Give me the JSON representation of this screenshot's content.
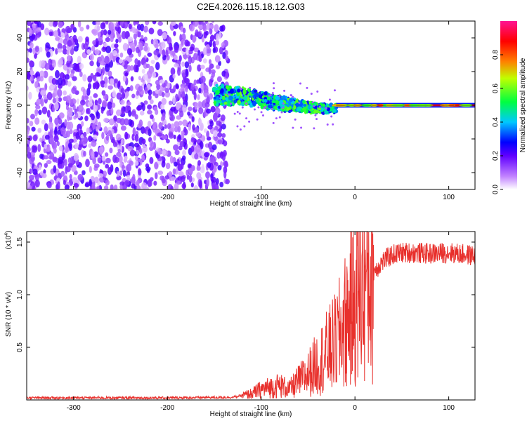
{
  "page": {
    "title": "C2E4.2026.115.18.12.G03"
  },
  "chart_data": [
    {
      "type": "heatmap",
      "title": "C2E4.2026.115.18.12.G03",
      "xlabel": "Height of straight line (km)",
      "ylabel": "Frequency (Hz)",
      "xlim": [
        -350,
        128
      ],
      "ylim": [
        -50,
        50
      ],
      "xticks": [
        -300,
        -200,
        -100,
        0,
        100
      ],
      "yticks": [
        -40,
        -20,
        0,
        20,
        40
      ],
      "colorbar": {
        "label": "Normalized spectral amplitude",
        "range": [
          0,
          1
        ],
        "ticks": [
          "0.0",
          "0.2",
          "0.4",
          "0.6",
          "0.8"
        ],
        "colormap": [
          "#ffffff",
          "#a040ff",
          "#0000ff",
          "#00e0ff",
          "#00ff00",
          "#ffff00",
          "#ff8000",
          "#ff0000",
          "#ff1493"
        ]
      },
      "regions": [
        {
          "name": "noise",
          "x_range": [
            -350,
            -135
          ],
          "freq_range": [
            -50,
            50
          ],
          "amplitude": 0.15
        },
        {
          "name": "transition",
          "x_range": [
            -150,
            -20
          ],
          "freq_center": [
            5,
            2,
            5,
            0
          ],
          "freq_spread": 6,
          "amplitude": 0.5
        },
        {
          "name": "tone",
          "x_range": [
            -20,
            128
          ],
          "freq_center": 0,
          "amplitude": 0.95
        }
      ]
    },
    {
      "type": "line",
      "xlabel": "Height of straight line (km)",
      "ylabel": "SNR (10 * v/v)",
      "scale_label": "(x10",
      "scale_exponent": "4",
      "xlim": [
        -350,
        128
      ],
      "ylim": [
        0,
        1.6
      ],
      "xticks": [
        -300,
        -200,
        -100,
        0,
        100
      ],
      "yticks": [
        "0.5",
        "1.0",
        "1.5"
      ],
      "series": [
        {
          "name": "SNR",
          "color": "#e8302c",
          "x": [
            -350,
            -300,
            -200,
            -130,
            -110,
            -100,
            -90,
            -80,
            -70,
            -60,
            -50,
            -40,
            -30,
            -20,
            -10,
            0,
            10,
            20,
            30,
            40,
            50,
            60,
            80,
            100,
            128
          ],
          "y": [
            0.02,
            0.02,
            0.02,
            0.025,
            0.06,
            0.1,
            0.12,
            0.14,
            0.1,
            0.18,
            0.25,
            0.35,
            0.45,
            0.55,
            0.75,
            0.95,
            1.1,
            1.22,
            1.32,
            1.38,
            1.4,
            1.4,
            1.39,
            1.4,
            1.37
          ]
        }
      ]
    }
  ]
}
